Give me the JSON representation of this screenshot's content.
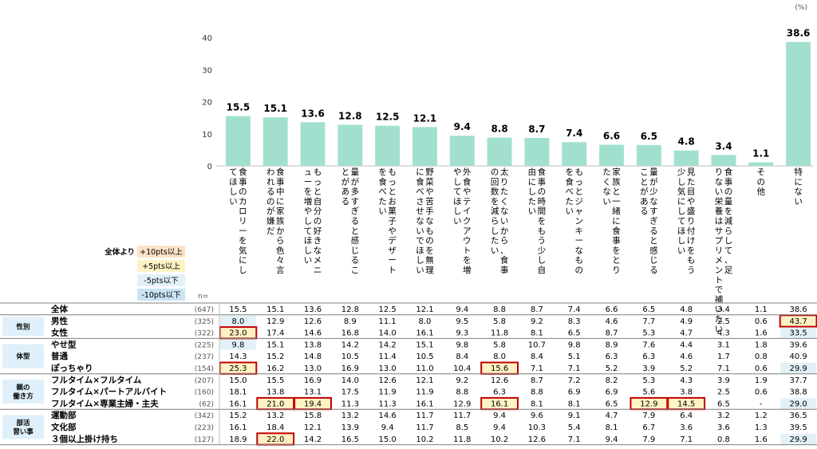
{
  "chart_data": {
    "type": "bar",
    "unit": "(%)",
    "ylim": [
      0,
      40
    ],
    "yticks": [
      0,
      10,
      20,
      30,
      40
    ],
    "bar_color": "#a1e0cf",
    "categories": [
      "食事のカロリーを気にしてほしい",
      "食事中に家族から色々言われるのが嫌だ",
      "もっと自分の好きなメニューを増やしてほしい",
      "量が多すぎると感じることがある",
      "もっとお菓子やデザートを食べたい",
      "野菜や苦手なものを無理に食べさせないでほしい",
      "外食やテイクアウトを増やしてほしい",
      "太りたくないから、食事の回数を減らしたい",
      "食事の時間をもう少し自由にしたい",
      "もっとジャンキーなものを食べたい",
      "家族と一緒に食事をとりたくない",
      "量が少なすぎると感じることがある",
      "見た目や盛り付けをもう少し気にしてほしい",
      "食事の量を減らして、足りない栄養はサプリメントで補いたい",
      "その他",
      "特にない"
    ],
    "values": [
      15.5,
      15.1,
      13.6,
      12.8,
      12.5,
      12.1,
      9.4,
      8.8,
      8.7,
      7.4,
      6.6,
      6.5,
      4.8,
      3.4,
      1.1,
      38.6
    ],
    "legend": {
      "prefix": "全体より",
      "items": [
        {
          "label": "+10pts以上",
          "color": "#fde2c8"
        },
        {
          "label": "+5pts以上",
          "color": "#fff2c4"
        },
        {
          "label": "-5pts以下",
          "color": "#e2f1f7"
        },
        {
          "label": "-10pts以下",
          "color": "#c9e3f3"
        }
      ]
    },
    "n_label": "n=",
    "total_row": {
      "label": "全体",
      "n": "(647)",
      "values": [
        "15.5",
        "15.1",
        "13.6",
        "12.8",
        "12.5",
        "12.1",
        "9.4",
        "8.8",
        "8.7",
        "7.4",
        "6.6",
        "6.5",
        "4.8",
        "3.4",
        "1.1",
        "38.6"
      ]
    },
    "groups": [
      {
        "label": "性別",
        "rows": [
          {
            "label": "男性",
            "n": "(325)",
            "values": [
              "8.0",
              "12.9",
              "12.6",
              "8.9",
              "11.1",
              "8.0",
              "9.5",
              "5.8",
              "9.2",
              "8.3",
              "4.6",
              "7.7",
              "4.9",
              "2.5",
              "0.6",
              "43.7"
            ]
          },
          {
            "label": "女性",
            "n": "(322)",
            "values": [
              "23.0",
              "17.4",
              "14.6",
              "16.8",
              "14.0",
              "16.1",
              "9.3",
              "11.8",
              "8.1",
              "6.5",
              "8.7",
              "5.3",
              "4.7",
              "4.3",
              "1.6",
              "33.5"
            ]
          }
        ]
      },
      {
        "label": "体型",
        "rows": [
          {
            "label": "やせ型",
            "n": "(225)",
            "values": [
              "9.8",
              "15.1",
              "13.8",
              "14.2",
              "14.2",
              "15.1",
              "9.8",
              "5.8",
              "10.7",
              "9.8",
              "8.9",
              "7.6",
              "4.4",
              "3.1",
              "1.8",
              "39.6"
            ]
          },
          {
            "label": "普通",
            "n": "(237)",
            "values": [
              "14.3",
              "15.2",
              "14.8",
              "10.5",
              "11.4",
              "10.5",
              "8.4",
              "8.0",
              "8.4",
              "5.1",
              "6.3",
              "6.3",
              "4.6",
              "1.7",
              "0.8",
              "40.9"
            ]
          },
          {
            "label": "ぽっちゃり",
            "n": "(154)",
            "values": [
              "25.3",
              "16.2",
              "13.0",
              "16.9",
              "13.0",
              "11.0",
              "10.4",
              "15.6",
              "7.1",
              "7.1",
              "5.2",
              "3.9",
              "5.2",
              "7.1",
              "0.6",
              "29.9"
            ]
          }
        ]
      },
      {
        "label": "親の\n働き方",
        "rows": [
          {
            "label": "フルタイム×フルタイム",
            "n": "(207)",
            "values": [
              "15.0",
              "15.5",
              "16.9",
              "14.0",
              "12.6",
              "12.1",
              "9.2",
              "12.6",
              "8.7",
              "7.2",
              "8.2",
              "5.3",
              "4.3",
              "3.9",
              "1.9",
              "37.7"
            ]
          },
          {
            "label": "フルタイム×パートアルバイト",
            "n": "(160)",
            "values": [
              "18.1",
              "13.8",
              "13.1",
              "17.5",
              "11.9",
              "11.9",
              "8.8",
              "6.3",
              "8.8",
              "6.9",
              "6.9",
              "5.6",
              "3.8",
              "2.5",
              "0.6",
              "38.8"
            ]
          },
          {
            "label": "フルタイム×専業主婦・主夫",
            "n": "(62)",
            "values": [
              "16.1",
              "21.0",
              "19.4",
              "11.3",
              "11.3",
              "16.1",
              "12.9",
              "16.1",
              "8.1",
              "8.1",
              "6.5",
              "12.9",
              "14.5",
              "6.5",
              "-",
              "29.0"
            ]
          }
        ]
      },
      {
        "label": "部活\n習い事",
        "rows": [
          {
            "label": "運動部",
            "n": "(342)",
            "values": [
              "15.2",
              "13.2",
              "15.8",
              "13.2",
              "14.6",
              "11.7",
              "11.7",
              "9.4",
              "9.6",
              "9.1",
              "4.7",
              "7.9",
              "6.4",
              "3.2",
              "1.2",
              "36.5"
            ]
          },
          {
            "label": "文化部",
            "n": "(223)",
            "values": [
              "16.1",
              "18.4",
              "12.1",
              "13.9",
              "9.4",
              "11.7",
              "8.5",
              "9.4",
              "10.3",
              "5.4",
              "8.1",
              "6.7",
              "3.6",
              "3.6",
              "1.3",
              "39.5"
            ]
          },
          {
            "label": "３個以上掛け持ち",
            "n": "(127)",
            "values": [
              "18.9",
              "22.0",
              "14.2",
              "16.5",
              "15.0",
              "10.2",
              "11.8",
              "10.2",
              "12.6",
              "7.1",
              "9.4",
              "7.9",
              "7.1",
              "0.8",
              "1.6",
              "29.9"
            ]
          }
        ]
      }
    ]
  }
}
